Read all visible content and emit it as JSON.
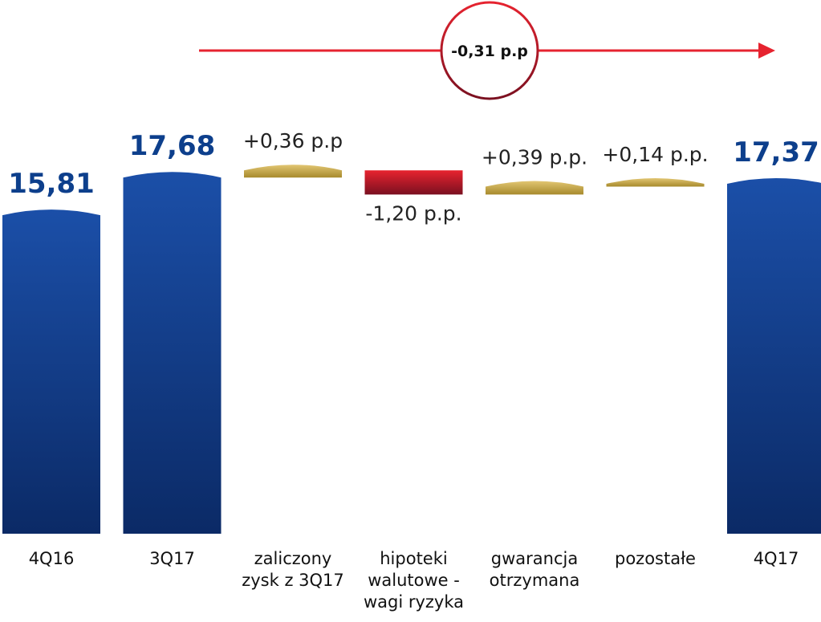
{
  "chart_data": {
    "type": "waterfall",
    "categories": [
      [
        "4Q16"
      ],
      [
        "3Q17"
      ],
      [
        "zaliczony",
        "zysk z 3Q17"
      ],
      [
        "hipoteki",
        "walutowe -",
        "wagi ryzyka"
      ],
      [
        "gwarancja",
        "otrzymana"
      ],
      [
        "pozostałe"
      ],
      [
        "4Q17"
      ]
    ],
    "bars": [
      {
        "kind": "total",
        "value": 15.81,
        "label": "15,81"
      },
      {
        "kind": "total",
        "value": 17.68,
        "label": "17,68"
      },
      {
        "kind": "increase",
        "value": 0.36,
        "label": "+0,36 p.p"
      },
      {
        "kind": "decrease",
        "value": -1.2,
        "label": "-1,20 p.p."
      },
      {
        "kind": "increase",
        "value": 0.39,
        "label": "+0,39 p.p."
      },
      {
        "kind": "increase",
        "value": 0.14,
        "label": "+0,14 p.p."
      },
      {
        "kind": "total",
        "value": 17.37,
        "label": "17,37"
      }
    ],
    "summary_change": "-0,31 p.p",
    "colors": {
      "total_top": "#1b4fa8",
      "total_bottom": "#0b2a66",
      "increase_top": "#e2c673",
      "increase_bottom": "#a78a2c",
      "decrease_top": "#e8232f",
      "decrease_bottom": "#7a1020",
      "arrow": "#e6232f",
      "circle_border_top": "#e6232f",
      "circle_border_bottom": "#7a1020"
    }
  }
}
